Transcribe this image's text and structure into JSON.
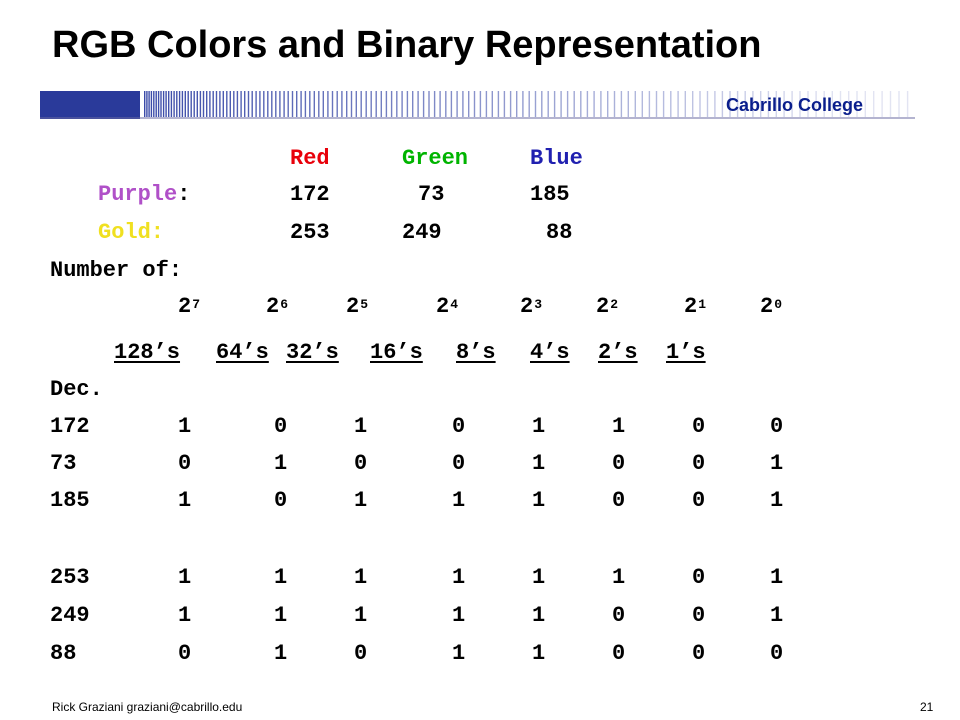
{
  "slide": {
    "title": "RGB Colors and Binary Representation",
    "college": "Cabrillo College",
    "footer": "Rick Graziani  graziani@cabrillo.edu",
    "page_number": "21"
  },
  "colors": {
    "red": "#e8000a",
    "green": "#00b400",
    "blue": "#2020b0",
    "purple": "#b050c8",
    "gold": "#f0e020",
    "college_text": "#0a1e8c"
  },
  "header_row": {
    "red": "Red",
    "green": "Green",
    "blue": "Blue"
  },
  "purple_row": {
    "label": "Purple",
    "colon": ":",
    "r": "172",
    "g": "73",
    "b": "185"
  },
  "gold_row": {
    "label": "Gold:",
    "r": "253",
    "g": "249",
    "b": "88"
  },
  "number_of_label": "Number of:",
  "powers": [
    {
      "base": "2",
      "exp": "7"
    },
    {
      "base": "2",
      "exp": "6"
    },
    {
      "base": "2",
      "exp": "5"
    },
    {
      "base": "2",
      "exp": "4"
    },
    {
      "base": "2",
      "exp": "3"
    },
    {
      "base": "2",
      "exp": "2"
    },
    {
      "base": "2",
      "exp": "1"
    },
    {
      "base": "2",
      "exp": "0"
    }
  ],
  "place_values": [
    "128’s",
    "64’s",
    "32’s",
    "16’s",
    "8’s",
    "4’s",
    "2’s",
    "1’s"
  ],
  "dec_label": "Dec.",
  "rows": [
    {
      "dec": "172",
      "bits": [
        "1",
        "0",
        "1",
        "0",
        "1",
        "1",
        "0",
        "0"
      ]
    },
    {
      "dec": "73",
      "bits": [
        "0",
        "1",
        "0",
        "0",
        "1",
        "0",
        "0",
        "1"
      ]
    },
    {
      "dec": "185",
      "bits": [
        "1",
        "0",
        "1",
        "1",
        "1",
        "0",
        "0",
        "1"
      ]
    },
    {
      "dec": "253",
      "bits": [
        "1",
        "1",
        "1",
        "1",
        "1",
        "1",
        "0",
        "1"
      ]
    },
    {
      "dec": "249",
      "bits": [
        "1",
        "1",
        "1",
        "1",
        "1",
        "0",
        "0",
        "1"
      ]
    },
    {
      "dec": "88",
      "bits": [
        "0",
        "1",
        "0",
        "1",
        "1",
        "0",
        "0",
        "0"
      ]
    }
  ]
}
